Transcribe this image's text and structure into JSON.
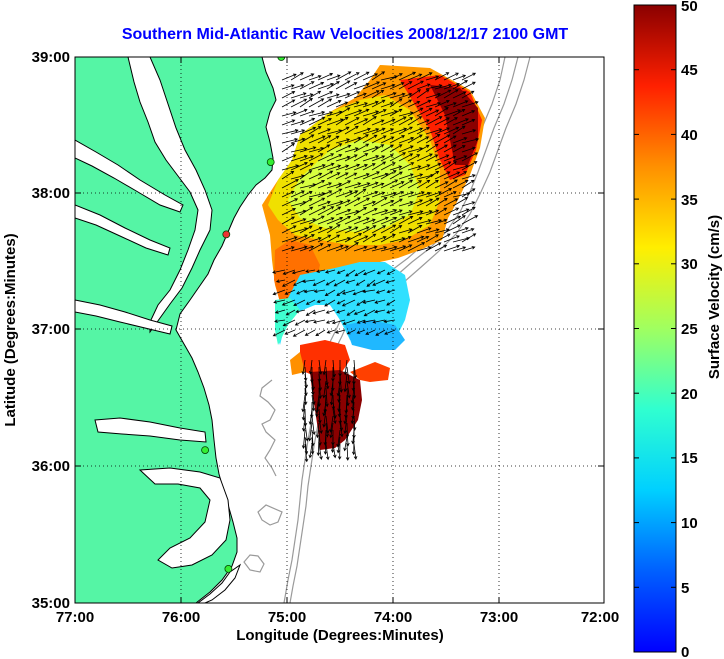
{
  "title": "Southern Mid-Atlantic Raw Velocities 2008/12/17 2100 GMT",
  "map": {
    "xlabel": "Longitude (Degrees:Minutes)",
    "ylabel": "Latitude (Degrees:Minutes)",
    "xticks": [
      "77:00",
      "76:00",
      "75:00",
      "74:00",
      "73:00",
      "72:00"
    ],
    "yticks": [
      "39:00",
      "38:00",
      "37:00",
      "36:00",
      "35:00"
    ],
    "lon_range": [
      -77,
      -72
    ],
    "lat_range": [
      35,
      39
    ],
    "grid": true,
    "land_color": "#55f5a5",
    "coast_color": "#000000",
    "bathymetry_color": "#9a9a9a"
  },
  "colorbar": {
    "label": "Surface Velocity (cm/s)",
    "ticks": [
      "50",
      "45",
      "40",
      "35",
      "30",
      "25",
      "20",
      "15",
      "10",
      "5",
      "0"
    ],
    "range": [
      0,
      50
    ],
    "colormap": "jet"
  },
  "stations": [
    {
      "lon": -75.05,
      "lat": 39.0,
      "color": "#33ee33"
    },
    {
      "lon": -75.15,
      "lat": 38.23,
      "color": "#33ee33"
    },
    {
      "lon": -75.57,
      "lat": 37.7,
      "color": "#ee3333"
    },
    {
      "lon": -75.77,
      "lat": 36.12,
      "color": "#33ee33"
    },
    {
      "lon": -75.55,
      "lat": 35.25,
      "color": "#33ee33"
    }
  ]
}
